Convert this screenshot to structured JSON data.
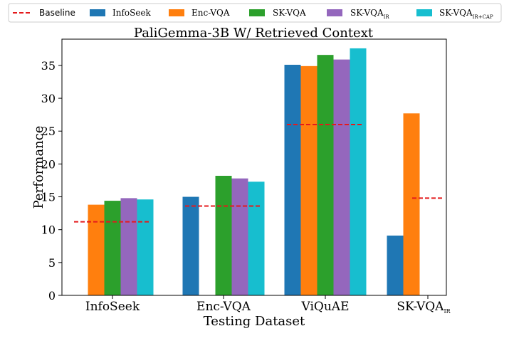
{
  "chart_data": {
    "type": "bar",
    "title": "PaliGemma-3B W/ Retrieved Context",
    "xlabel": "Testing Dataset",
    "ylabel": "Performance",
    "ylim": [
      0,
      39
    ],
    "yticks": [
      0,
      5,
      10,
      15,
      20,
      25,
      30,
      35
    ],
    "grid": false,
    "legend_position": "top",
    "categories": [
      {
        "label": "InfoSeek",
        "sub": ""
      },
      {
        "label": "Enc-VQA",
        "sub": ""
      },
      {
        "label": "ViQuAE",
        "sub": ""
      },
      {
        "label": "SK-VQA",
        "sub": "IR"
      }
    ],
    "series": [
      {
        "name": "InfoSeek",
        "sub": "",
        "color": "#1f77b4",
        "values": [
          null,
          15.0,
          35.1,
          9.1
        ]
      },
      {
        "name": "Enc-VQA",
        "sub": "",
        "color": "#ff7f0e",
        "values": [
          13.8,
          null,
          34.9,
          27.7
        ]
      },
      {
        "name": "SK-VQA",
        "sub": "",
        "color": "#2ca02c",
        "values": [
          14.4,
          18.2,
          36.6,
          null
        ]
      },
      {
        "name": "SK-VQA",
        "sub": "IR",
        "color": "#9467bd",
        "values": [
          14.8,
          17.8,
          35.9,
          null
        ]
      },
      {
        "name": "SK-VQA",
        "sub": "IR+CAP",
        "color": "#17becf",
        "values": [
          14.6,
          17.3,
          37.6,
          null
        ]
      }
    ],
    "baseline": {
      "name": "Baseline",
      "color": "#e41a1c",
      "values": [
        11.2,
        13.6,
        26.0,
        14.8
      ]
    }
  }
}
